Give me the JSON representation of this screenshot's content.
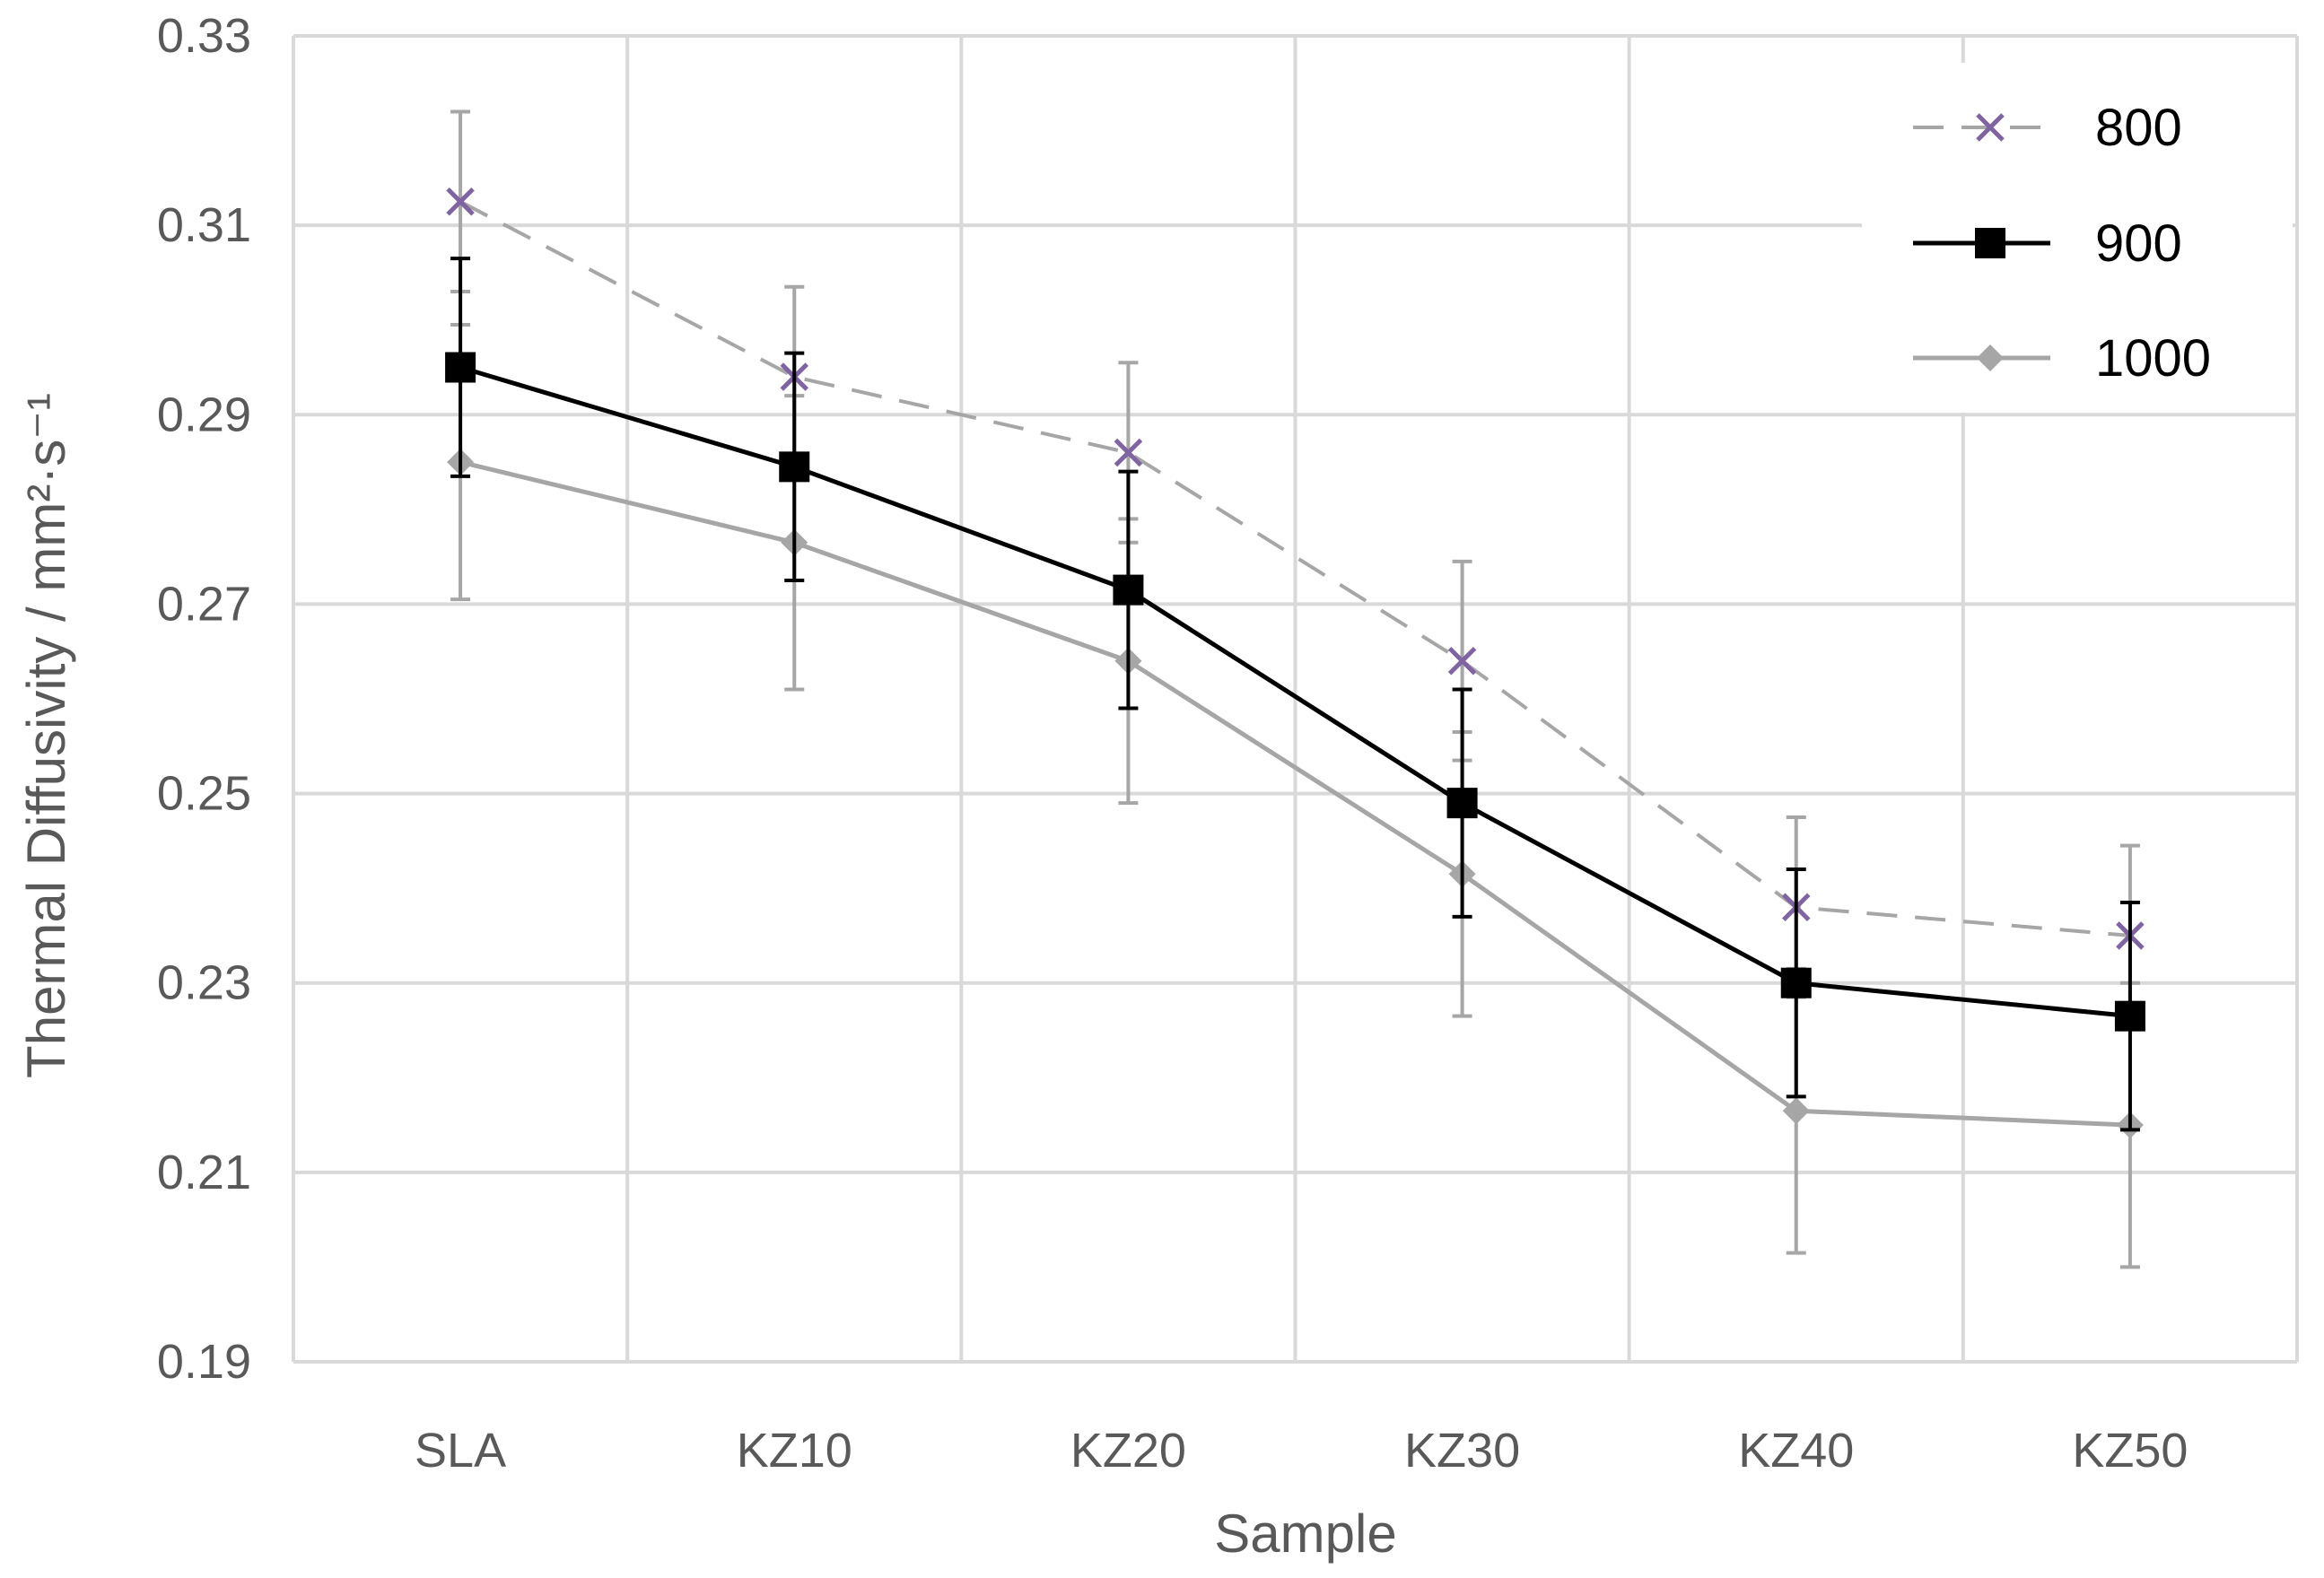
{
  "chart_data": {
    "type": "line",
    "title": "",
    "xlabel": "Sample",
    "ylabel": "Thermal Diffusivity / mm²·s⁻¹",
    "categories": [
      "SLA",
      "KZ10",
      "KZ20",
      "KZ30",
      "KZ40",
      "KZ50"
    ],
    "ylim": [
      0.19,
      0.33
    ],
    "yticks": [
      "0.19",
      "0.21",
      "0.23",
      "0.25",
      "0.27",
      "0.29",
      "0.31",
      "0.33"
    ],
    "grid": true,
    "legend_position": "top-right",
    "series": [
      {
        "name": "800",
        "values": [
          0.3125,
          0.294,
          0.286,
          0.264,
          0.238,
          0.235
        ],
        "error": [
          0.0095,
          0.0095,
          0.0095,
          0.0105,
          0.0095,
          0.0095
        ],
        "color": "#a6a6a6",
        "marker_color": "#8064a2",
        "line_style": "dashed",
        "marker": "x"
      },
      {
        "name": "900",
        "values": [
          0.295,
          0.2845,
          0.2715,
          0.249,
          0.23,
          0.2265
        ],
        "error": [
          0.0115,
          0.012,
          0.0125,
          0.012,
          0.012,
          0.012
        ],
        "color": "#000000",
        "marker_color": "#000000",
        "line_style": "solid",
        "marker": "square"
      },
      {
        "name": "1000",
        "values": [
          0.285,
          0.2765,
          0.264,
          0.2415,
          0.2165,
          0.215
        ],
        "error": [
          0.0145,
          0.0155,
          0.015,
          0.015,
          0.015,
          0.015
        ],
        "color": "#a6a6a6",
        "marker_color": "#a6a6a6",
        "line_style": "solid",
        "marker": "diamond"
      }
    ]
  }
}
